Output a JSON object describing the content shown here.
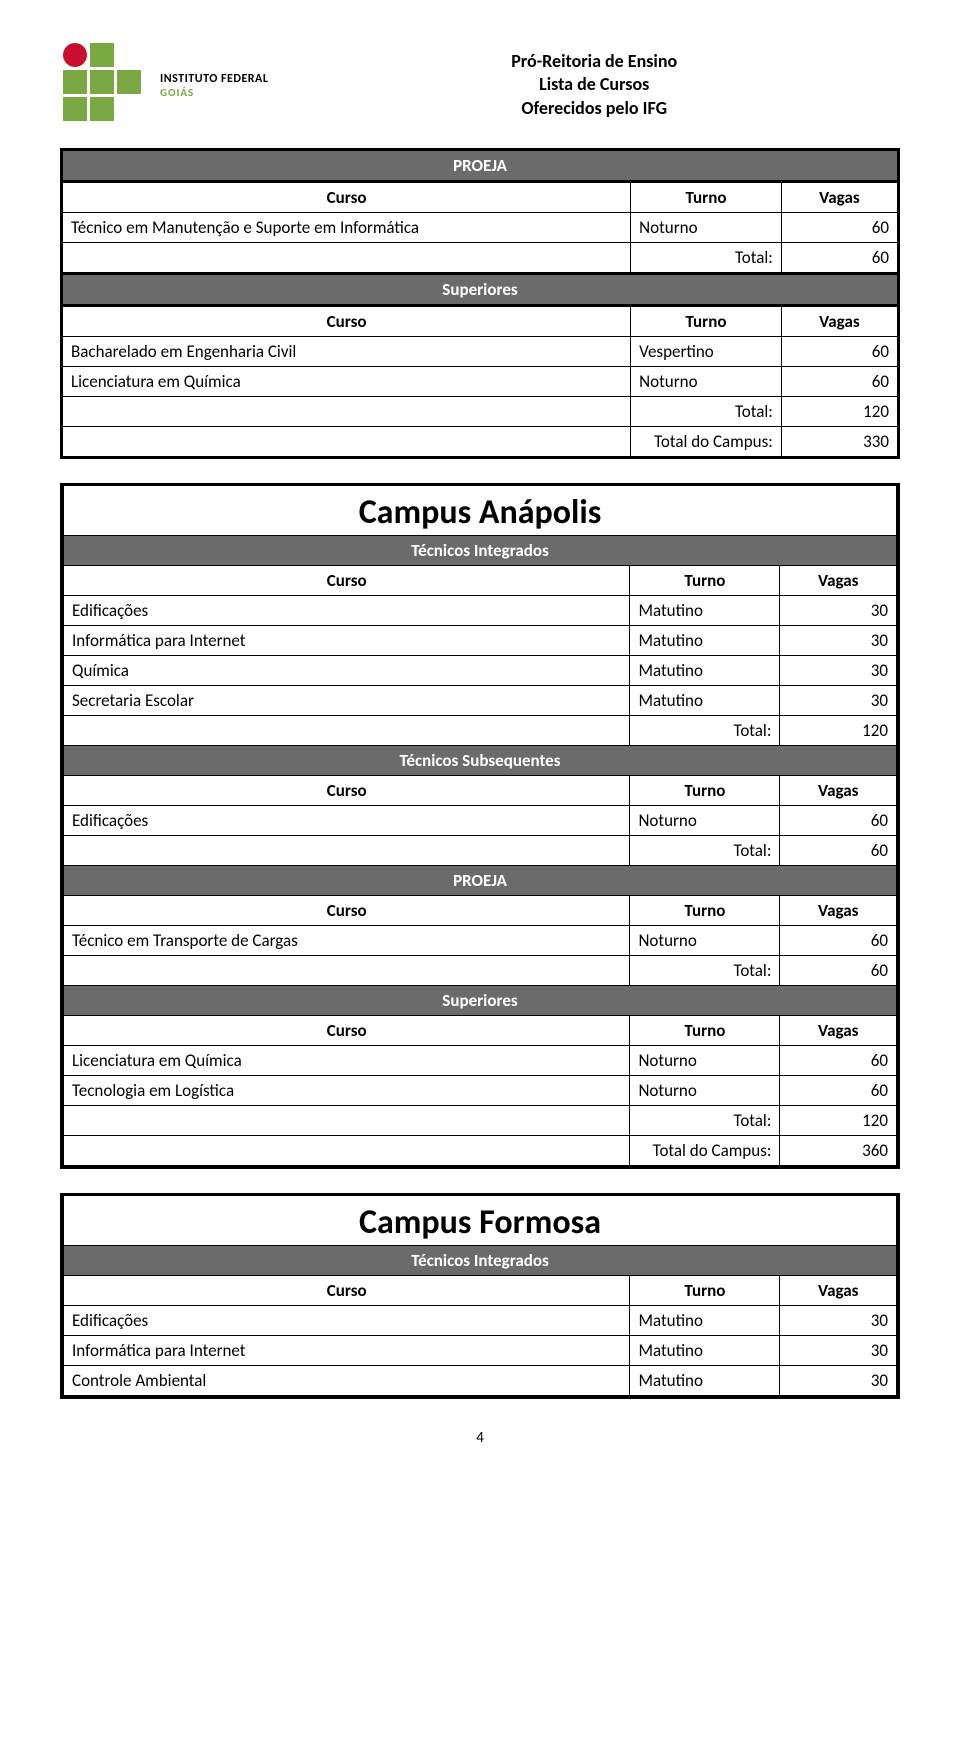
{
  "header": {
    "logo_inst": "INSTITUTO FEDERAL",
    "logo_sub": "GOIÁS",
    "line1": "Pró-Reitoria de Ensino",
    "line2": "Lista de Cursos",
    "line3": "Oferecidos pelo IFG"
  },
  "colors": {
    "band_bg": "#6b6b6b",
    "band_fg": "#ffffff",
    "border": "#000000",
    "logo_red": "#c8102e",
    "logo_green": "#7aa843"
  },
  "labels": {
    "curso": "Curso",
    "turno": "Turno",
    "vagas": "Vagas",
    "total": "Total:",
    "total_campus": "Total do Campus:"
  },
  "top_block": {
    "sections": [
      {
        "band": "PROEJA",
        "rows": [
          {
            "curso": "Técnico em Manutenção e Suporte em Informática",
            "turno": "Noturno",
            "vagas": "60"
          }
        ],
        "total": "60"
      },
      {
        "band": "Superiores",
        "rows": [
          {
            "curso": "Bacharelado em Engenharia Civil",
            "turno": "Vespertino",
            "vagas": "60"
          },
          {
            "curso": "Licenciatura em Química",
            "turno": "Noturno",
            "vagas": "60"
          }
        ],
        "total": "120"
      }
    ],
    "campus_total": "330"
  },
  "campus_anapolis": {
    "title": "Campus Anápolis",
    "sections": [
      {
        "band": "Técnicos Integrados",
        "rows": [
          {
            "curso": "Edificações",
            "turno": "Matutino",
            "vagas": "30"
          },
          {
            "curso": "Informática para Internet",
            "turno": "Matutino",
            "vagas": "30"
          },
          {
            "curso": "Química",
            "turno": "Matutino",
            "vagas": "30"
          },
          {
            "curso": "Secretaria Escolar",
            "turno": "Matutino",
            "vagas": "30"
          }
        ],
        "total": "120"
      },
      {
        "band": "Técnicos Subsequentes",
        "rows": [
          {
            "curso": "Edificações",
            "turno": "Noturno",
            "vagas": "60"
          }
        ],
        "total": "60"
      },
      {
        "band": "PROEJA",
        "rows": [
          {
            "curso": "Técnico em Transporte de Cargas",
            "turno": "Noturno",
            "vagas": "60"
          }
        ],
        "total": "60"
      },
      {
        "band": "Superiores",
        "rows": [
          {
            "curso": "Licenciatura em Química",
            "turno": "Noturno",
            "vagas": "60"
          },
          {
            "curso": "Tecnologia em Logística",
            "turno": "Noturno",
            "vagas": "60"
          }
        ],
        "total": "120"
      }
    ],
    "campus_total": "360"
  },
  "campus_formosa": {
    "title": "Campus Formosa",
    "sections": [
      {
        "band": "Técnicos Integrados",
        "rows": [
          {
            "curso": "Edificações",
            "turno": "Matutino",
            "vagas": "30"
          },
          {
            "curso": "Informática para Internet",
            "turno": "Matutino",
            "vagas": "30"
          },
          {
            "curso": "Controle Ambiental",
            "turno": "Matutino",
            "vagas": "30"
          }
        ]
      }
    ]
  },
  "page_number": "4"
}
